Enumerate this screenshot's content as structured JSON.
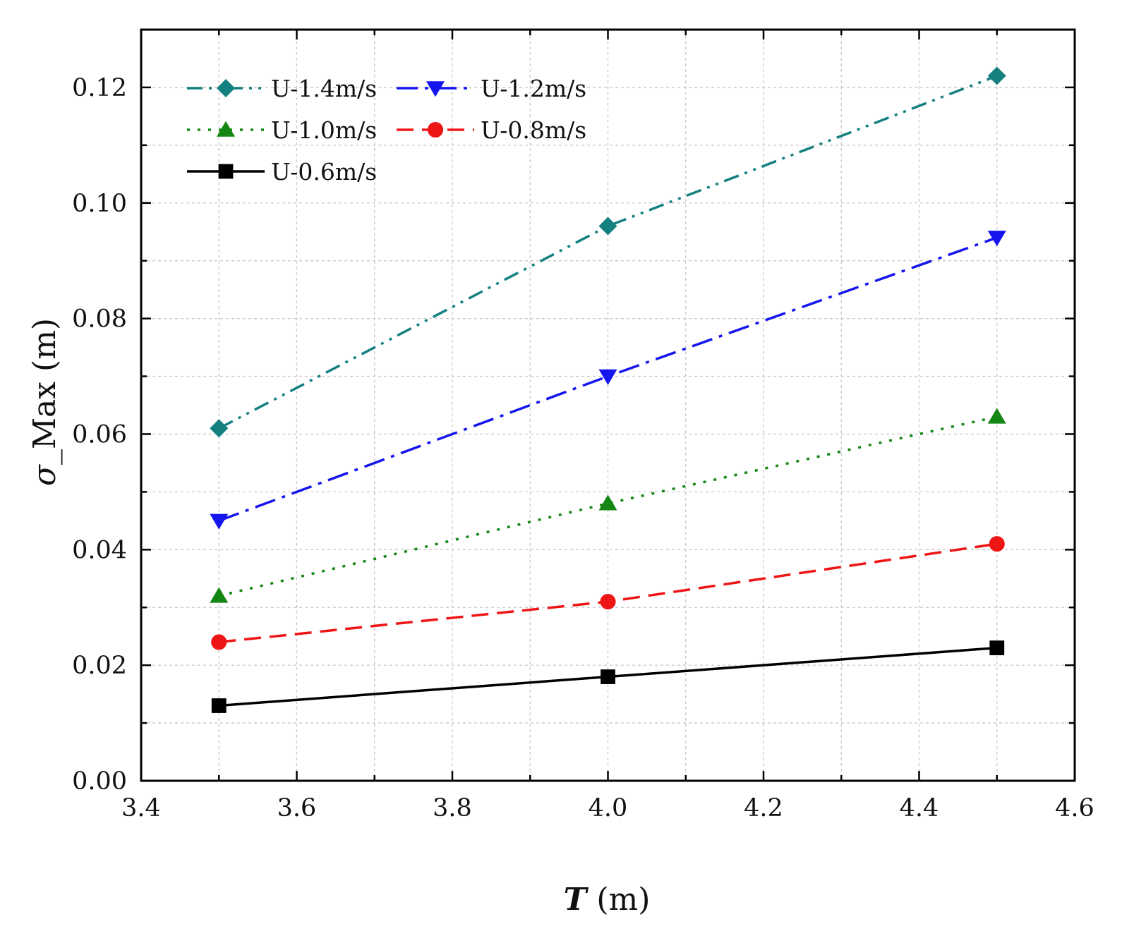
{
  "chart_data": {
    "type": "line",
    "xlabel": "T (m)",
    "xlabel_italic_part": "T",
    "xlabel_unit": " (m)",
    "ylabel": "σ_Max (m)",
    "ylabel_symbol": "σ",
    "ylabel_rest": "_Max (m)",
    "xlim": [
      3.4,
      4.6
    ],
    "ylim": [
      0.0,
      0.13
    ],
    "xticks": [
      3.4,
      3.6,
      3.8,
      4.0,
      4.2,
      4.4,
      4.6
    ],
    "xtick_labels": [
      "3.4",
      "3.6",
      "3.8",
      "4.0",
      "4.2",
      "4.4",
      "4.6"
    ],
    "yticks": [
      0.0,
      0.02,
      0.04,
      0.06,
      0.08,
      0.1,
      0.12
    ],
    "ytick_labels": [
      "0.00",
      "0.02",
      "0.04",
      "0.06",
      "0.08",
      "0.10",
      "0.12"
    ],
    "grid": true,
    "legend_position": "top-left",
    "x": [
      3.5,
      4.0,
      4.5
    ],
    "series": [
      {
        "name": "U-1.4m/s",
        "values": [
          0.061,
          0.096,
          0.122
        ],
        "color": "#148080",
        "marker": "diamond",
        "dash": "dash-dot-dot"
      },
      {
        "name": "U-1.2m/s",
        "values": [
          0.045,
          0.07,
          0.094
        ],
        "color": "#1515ee",
        "marker": "triangle-down",
        "dash": "dash-dot"
      },
      {
        "name": "U-1.0m/s",
        "values": [
          0.032,
          0.048,
          0.063
        ],
        "color": "#138613",
        "marker": "triangle-up",
        "dash": "dot"
      },
      {
        "name": "U-0.8m/s",
        "values": [
          0.024,
          0.031,
          0.041
        ],
        "color": "#ee1515",
        "marker": "circle",
        "dash": "dash"
      },
      {
        "name": "U-0.6m/s",
        "values": [
          0.013,
          0.018,
          0.023
        ],
        "color": "#000000",
        "marker": "square",
        "dash": "solid"
      }
    ]
  }
}
